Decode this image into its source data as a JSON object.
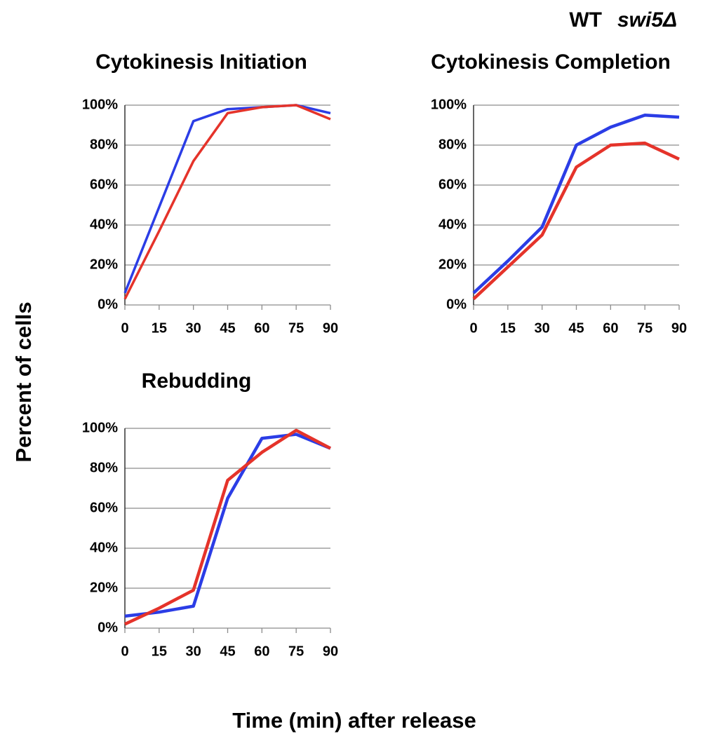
{
  "ylabel": "Percent of cells",
  "xlabel": "Time (min) after release",
  "chart_data": [
    {
      "type": "line",
      "title": "Cytokinesis Initiation",
      "x": [
        0,
        15,
        30,
        45,
        60,
        75,
        90
      ],
      "xlim": [
        0,
        90
      ],
      "xticks": [
        0,
        15,
        30,
        45,
        60,
        75,
        90
      ],
      "ylim": [
        0,
        100
      ],
      "yticks": [
        {
          "value": 0,
          "label": "0%"
        },
        {
          "value": 20,
          "label": "20%"
        },
        {
          "value": 40,
          "label": "40%"
        },
        {
          "value": 60,
          "label": "60%"
        },
        {
          "value": 80,
          "label": "80%"
        },
        {
          "value": 100,
          "label": "100%"
        }
      ],
      "grid": true,
      "series": [
        {
          "name": "WT",
          "color": "#2b3de6",
          "values": [
            6,
            49,
            92,
            98,
            99,
            100,
            96
          ]
        },
        {
          "name": "swi5Δ",
          "color": "#e5332a",
          "values": [
            3,
            37,
            72,
            96,
            99,
            100,
            93
          ]
        }
      ]
    },
    {
      "type": "line",
      "title": "Cytokinesis Completion",
      "x": [
        0,
        15,
        30,
        45,
        60,
        75,
        90
      ],
      "xlim": [
        0,
        90
      ],
      "xticks": [
        0,
        15,
        30,
        45,
        60,
        75,
        90
      ],
      "ylim": [
        0,
        100
      ],
      "yticks": [
        {
          "value": 0,
          "label": "0%"
        },
        {
          "value": 20,
          "label": "20%"
        },
        {
          "value": 40,
          "label": "40%"
        },
        {
          "value": 60,
          "label": "60%"
        },
        {
          "value": 80,
          "label": "80%"
        },
        {
          "value": 100,
          "label": "100%"
        }
      ],
      "grid": true,
      "series": [
        {
          "name": "WT",
          "color": "#2b3de6",
          "values": [
            6,
            22,
            39,
            80,
            89,
            95,
            94
          ]
        },
        {
          "name": "swi5Δ",
          "color": "#e5332a",
          "values": [
            3,
            19,
            35,
            69,
            80,
            81,
            73
          ]
        }
      ]
    },
    {
      "type": "line",
      "title": "Rebudding",
      "x": [
        0,
        15,
        30,
        45,
        60,
        75,
        90
      ],
      "xlim": [
        0,
        90
      ],
      "xticks": [
        0,
        15,
        30,
        45,
        60,
        75,
        90
      ],
      "ylim": [
        0,
        100
      ],
      "yticks": [
        {
          "value": 0,
          "label": "0%"
        },
        {
          "value": 20,
          "label": "20%"
        },
        {
          "value": 40,
          "label": "40%"
        },
        {
          "value": 60,
          "label": "60%"
        },
        {
          "value": 80,
          "label": "80%"
        },
        {
          "value": 100,
          "label": "100%"
        }
      ],
      "grid": true,
      "series": [
        {
          "name": "WT",
          "color": "#2b3de6",
          "values": [
            6,
            8,
            11,
            65,
            95,
            97,
            90
          ]
        },
        {
          "name": "swi5Δ",
          "color": "#e5332a",
          "values": [
            2,
            10,
            19,
            74,
            88,
            99,
            90
          ]
        }
      ]
    }
  ]
}
